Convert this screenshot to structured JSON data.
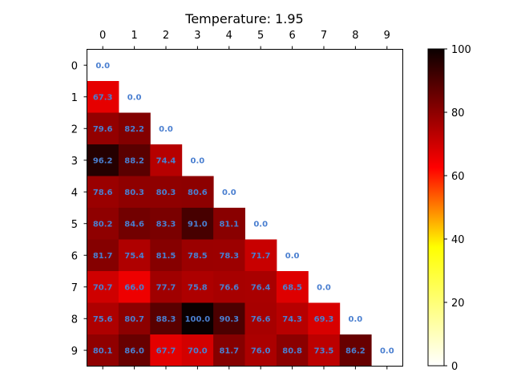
{
  "chart_data": {
    "type": "heatmap",
    "title": "Temperature: 1.95",
    "x_ticks": [
      "0",
      "1",
      "2",
      "3",
      "4",
      "5",
      "6",
      "7",
      "8",
      "9"
    ],
    "y_ticks": [
      "0",
      "1",
      "2",
      "3",
      "4",
      "5",
      "6",
      "7",
      "8",
      "9"
    ],
    "colormap": "hot_r",
    "vmin": 0,
    "vmax": 100,
    "colorbar_ticks": [
      "0",
      "20",
      "40",
      "60",
      "80",
      "100"
    ],
    "label_color": "#4a7fd0",
    "matrix": [
      [
        0.0
      ],
      [
        67.3,
        0.0
      ],
      [
        79.6,
        82.2,
        0.0
      ],
      [
        96.2,
        88.2,
        74.4,
        0.0
      ],
      [
        78.6,
        80.3,
        80.3,
        80.6,
        0.0
      ],
      [
        80.2,
        84.6,
        83.3,
        91.0,
        81.1,
        0.0
      ],
      [
        81.7,
        75.4,
        81.5,
        78.5,
        78.3,
        71.7,
        0.0
      ],
      [
        70.7,
        66.0,
        77.7,
        75.8,
        76.6,
        76.4,
        68.5,
        0.0
      ],
      [
        75.6,
        80.7,
        88.3,
        100.0,
        90.3,
        76.6,
        74.3,
        69.3,
        0.0
      ],
      [
        80.1,
        86.0,
        67.7,
        70.0,
        81.7,
        76.0,
        80.8,
        73.5,
        86.2,
        0.0
      ]
    ]
  }
}
